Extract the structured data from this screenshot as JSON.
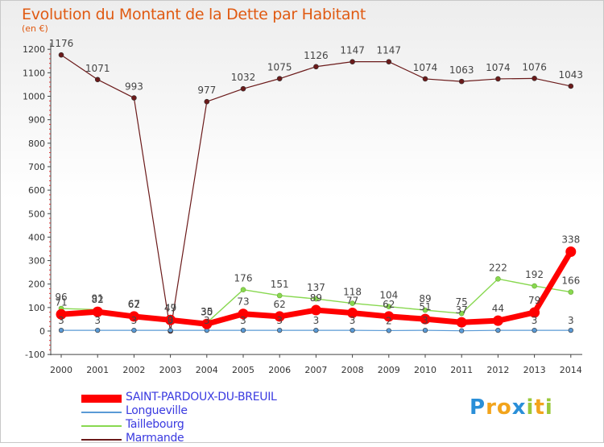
{
  "chart_data": {
    "type": "line",
    "title": "Evolution du Montant de la Dette par Habitant",
    "subtitle": "(en €)",
    "x": [
      "2000",
      "2001",
      "2002",
      "2003",
      "2004",
      "2005",
      "2006",
      "2007",
      "2008",
      "2009",
      "2010",
      "2011",
      "2012",
      "2013",
      "2014"
    ],
    "yticks": [
      "1200",
      "1100",
      "1000",
      "900",
      "800",
      "700",
      "600",
      "500",
      "400",
      "300",
      "200",
      "100",
      "0",
      "-100"
    ],
    "ylim": [
      -100,
      1200
    ],
    "grid": false,
    "legend_position": "bottom-left",
    "series": [
      {
        "name": "SAINT-PARDOUX-DU-BREUIL",
        "color": "#ff0000",
        "values": [
          71,
          82,
          62,
          47,
          30,
          73,
          62,
          89,
          77,
          62,
          51,
          37,
          44,
          79,
          338
        ],
        "labels": [
          "71",
          "82",
          "62",
          "47",
          "30",
          "73",
          "62",
          "89",
          "77",
          "62",
          "51",
          "37",
          "44",
          "79",
          "338"
        ]
      },
      {
        "name": "Longueville",
        "color": "#5a9ad6",
        "values": [
          3,
          3,
          3,
          3,
          3,
          3,
          3,
          3,
          3,
          2,
          3,
          1,
          3,
          3,
          3
        ],
        "labels": [
          "3",
          "3",
          "3",
          "3",
          "3",
          "3",
          "3",
          "3",
          "3",
          "2",
          "3",
          "",
          "",
          "3",
          "3"
        ]
      },
      {
        "name": "Taillebourg",
        "color": "#88d850",
        "values": [
          96,
          91,
          67,
          49,
          35,
          176,
          151,
          137,
          118,
          104,
          89,
          75,
          222,
          192,
          166
        ],
        "labels": [
          "96",
          "91",
          "67",
          "49",
          "35",
          "176",
          "151",
          "137",
          "118",
          "104",
          "89",
          "75",
          "222",
          "192",
          "166"
        ]
      },
      {
        "name": "Marmande",
        "color": "#6b1a1a",
        "values": [
          1176,
          1071,
          993,
          0,
          977,
          1032,
          1075,
          1126,
          1147,
          1147,
          1074,
          1063,
          1074,
          1076,
          1043
        ],
        "labels": [
          "1176",
          "1071",
          "993",
          "0",
          "977",
          "1032",
          "1075",
          "1126",
          "1147",
          "1147",
          "1074",
          "1063",
          "1074",
          "1076",
          "1043"
        ]
      }
    ]
  },
  "logo": {
    "letters": [
      "P",
      "r",
      "o",
      "x",
      "i",
      "t",
      "i"
    ],
    "colors": [
      "#2a8fd8",
      "#f2a41c",
      "#f2a41c",
      "#2a8fd8",
      "#9ac83a",
      "#f2a41c",
      "#9ac83a"
    ]
  }
}
